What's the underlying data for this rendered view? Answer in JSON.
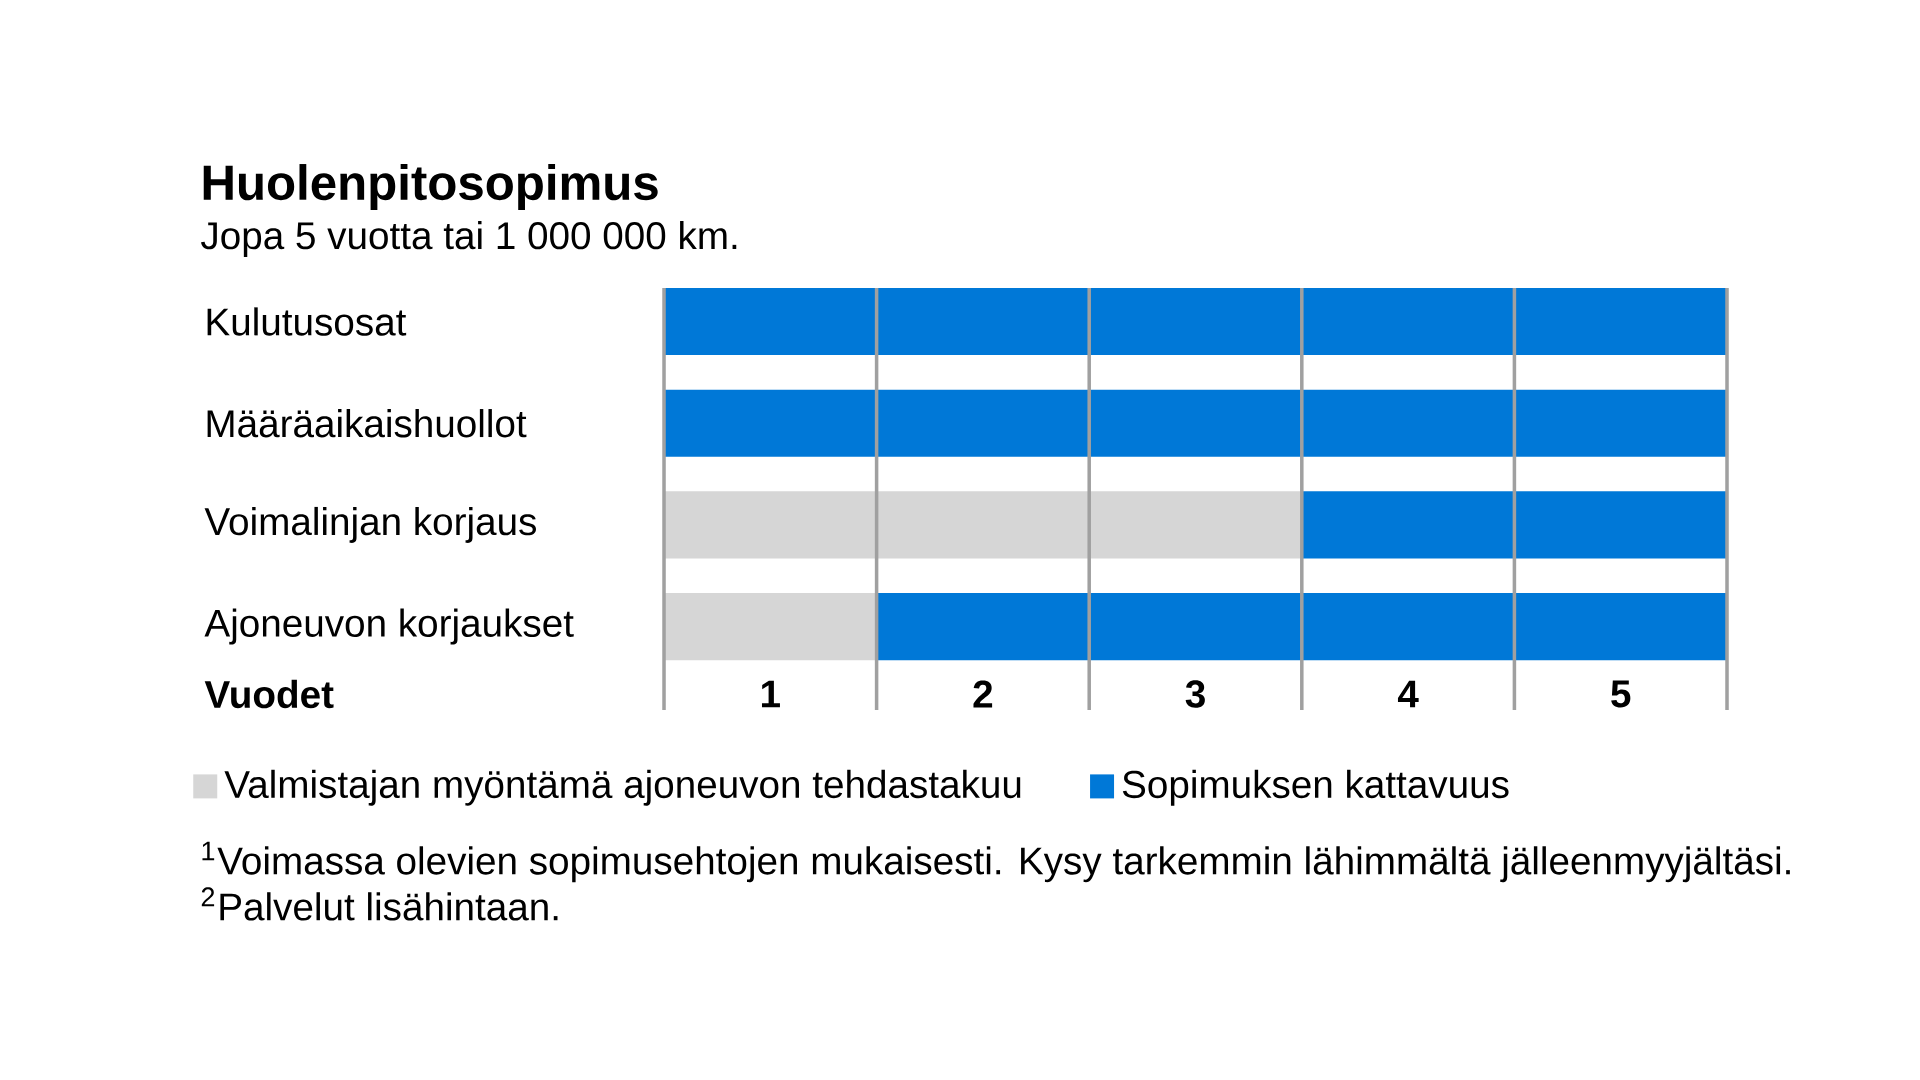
{
  "chart_data": {
    "type": "bar",
    "orientation": "horizontal",
    "stacked": true,
    "title": "Huolenpitosopimus",
    "subtitle": "Jopa 5 vuotta tai 1 000 000 km.",
    "xlabel": "Vuodet",
    "categories": [
      "Kulutusosat",
      "Määräaikaishuollot",
      "Voimalinjan korjaus",
      "Ajoneuvon korjaukset"
    ],
    "series": [
      {
        "name": "Valmistajan myöntämä ajoneuvon tehdastakuu",
        "color": "#d6d6d6",
        "values": [
          0,
          0,
          3,
          1
        ]
      },
      {
        "name": "Sopimuksen kattavuus",
        "color": "#0078d7",
        "values": [
          5,
          5,
          2,
          4
        ]
      }
    ],
    "xlim": [
      0,
      5
    ],
    "xticks": [
      {
        "value": 0,
        "label": null
      },
      {
        "value": 0.5,
        "label": "1"
      },
      {
        "value": 1,
        "label": null
      },
      {
        "value": 1.5,
        "label": "2"
      },
      {
        "value": 2,
        "label": null
      },
      {
        "value": 2.5,
        "label": "3"
      },
      {
        "value": 3,
        "label": null
      },
      {
        "value": 3.5,
        "label": "4"
      },
      {
        "value": 4,
        "label": null
      },
      {
        "value": 4.5,
        "label": "5"
      },
      {
        "value": 5,
        "label": null
      }
    ],
    "grid": "x",
    "legend": "bottom",
    "annotations": [
      "$^{1}$Voimassa olevien sopimusehtojen mukaisesti. Kysy tarkemmin lähimmältä jälleenmyyjältäsi.",
      "$^{2}$Palvelut lisähintaan."
    ]
  }
}
